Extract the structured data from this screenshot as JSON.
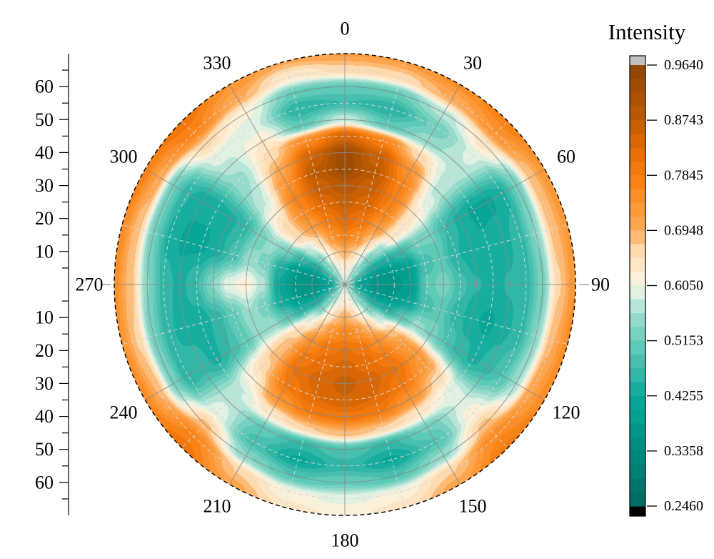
{
  "chart_data": {
    "type": "heatmap",
    "projection": "polar",
    "colorbar": {
      "title": "Intensity",
      "tick_labels": [
        "0.9640",
        "0.8743",
        "0.7845",
        "0.6948",
        "0.6050",
        "0.5153",
        "0.4255",
        "0.3358",
        "0.2460"
      ],
      "min": 0.246,
      "max": 0.964,
      "bands": 32,
      "over_color": "#c1c1c1",
      "under_color": "#000000"
    },
    "angular_tick_labels": [
      "0",
      "30",
      "60",
      "90",
      "120",
      "150",
      "180",
      "210",
      "240",
      "270",
      "300",
      "330"
    ],
    "angular_tick_degrees": [
      0,
      30,
      60,
      90,
      120,
      150,
      180,
      210,
      240,
      270,
      300,
      330
    ],
    "radial_axis": {
      "tick_labels": [
        "10",
        "20",
        "30",
        "40",
        "50",
        "60"
      ],
      "major_step": 10,
      "minor_step": 5,
      "r_max": 70,
      "mirrored": true
    },
    "grid_style": {
      "major_line_color": "#8a8a8a",
      "minor_line_color": "#d7d7d7",
      "boundary_color": "#000000",
      "axis_color": "#000000"
    },
    "colormap_stops": [
      [
        0.246,
        "#00685e"
      ],
      [
        0.3,
        "#007e72"
      ],
      [
        0.336,
        "#008a7e"
      ],
      [
        0.38,
        "#009b8d"
      ],
      [
        0.4255,
        "#0aa99b"
      ],
      [
        0.47,
        "#3fbcab"
      ],
      [
        0.5153,
        "#67cdbb"
      ],
      [
        0.555,
        "#9cdccd"
      ],
      [
        0.585,
        "#cdeee2"
      ],
      [
        0.605,
        "#f9f5e2"
      ],
      [
        0.625,
        "#fdecd3"
      ],
      [
        0.66,
        "#feddb2"
      ],
      [
        0.6948,
        "#fdab59"
      ],
      [
        0.73,
        "#fc9838"
      ],
      [
        0.7845,
        "#f87d0e"
      ],
      [
        0.83,
        "#e06a05"
      ],
      [
        0.8743,
        "#c25c03"
      ],
      [
        0.92,
        "#a54f02"
      ],
      [
        0.964,
        "#8c4501"
      ]
    ],
    "grid": {
      "r_values": [
        0,
        5,
        10,
        15,
        20,
        25,
        30,
        35,
        40,
        45,
        50,
        55,
        60,
        65,
        70
      ],
      "theta_values_deg": [
        0,
        15,
        30,
        45,
        60,
        75,
        90,
        105,
        120,
        135,
        150,
        165,
        180,
        195,
        210,
        225,
        240,
        255,
        270,
        285,
        300,
        315,
        330,
        345
      ],
      "values": [
        [
          0.58,
          0.58,
          0.58,
          0.58,
          0.58,
          0.58,
          0.58,
          0.58,
          0.58,
          0.58,
          0.58,
          0.58,
          0.58,
          0.58,
          0.58,
          0.58,
          0.58,
          0.58,
          0.58,
          0.58,
          0.58,
          0.58,
          0.58,
          0.58
        ],
        [
          0.63,
          0.61,
          0.57,
          0.52,
          0.47,
          0.42,
          0.4,
          0.42,
          0.47,
          0.52,
          0.57,
          0.61,
          0.63,
          0.61,
          0.57,
          0.52,
          0.47,
          0.42,
          0.4,
          0.42,
          0.47,
          0.52,
          0.57,
          0.61
        ],
        [
          0.7,
          0.67,
          0.6,
          0.51,
          0.43,
          0.37,
          0.36,
          0.37,
          0.43,
          0.52,
          0.61,
          0.67,
          0.7,
          0.67,
          0.61,
          0.52,
          0.43,
          0.37,
          0.36,
          0.37,
          0.43,
          0.52,
          0.6,
          0.67
        ],
        [
          0.78,
          0.75,
          0.67,
          0.55,
          0.44,
          0.38,
          0.37,
          0.38,
          0.44,
          0.58,
          0.68,
          0.74,
          0.77,
          0.74,
          0.68,
          0.6,
          0.44,
          0.38,
          0.37,
          0.38,
          0.46,
          0.58,
          0.66,
          0.74
        ],
        [
          0.83,
          0.8,
          0.73,
          0.64,
          0.47,
          0.4,
          0.39,
          0.41,
          0.5,
          0.68,
          0.75,
          0.8,
          0.81,
          0.8,
          0.75,
          0.66,
          0.5,
          0.43,
          0.42,
          0.44,
          0.52,
          0.66,
          0.72,
          0.79
        ],
        [
          0.86,
          0.84,
          0.77,
          0.64,
          0.52,
          0.48,
          0.5,
          0.48,
          0.55,
          0.72,
          0.79,
          0.82,
          0.84,
          0.82,
          0.79,
          0.68,
          0.55,
          0.52,
          0.57,
          0.53,
          0.55,
          0.66,
          0.76,
          0.83
        ],
        [
          0.89,
          0.86,
          0.78,
          0.63,
          0.52,
          0.5,
          0.53,
          0.5,
          0.53,
          0.74,
          0.81,
          0.84,
          0.86,
          0.84,
          0.81,
          0.68,
          0.55,
          0.56,
          0.62,
          0.55,
          0.52,
          0.62,
          0.77,
          0.86
        ],
        [
          0.93,
          0.88,
          0.77,
          0.6,
          0.47,
          0.45,
          0.48,
          0.46,
          0.49,
          0.72,
          0.79,
          0.83,
          0.85,
          0.83,
          0.79,
          0.66,
          0.5,
          0.51,
          0.6,
          0.48,
          0.46,
          0.58,
          0.74,
          0.88
        ],
        [
          0.93,
          0.86,
          0.74,
          0.57,
          0.44,
          0.43,
          0.45,
          0.43,
          0.46,
          0.66,
          0.74,
          0.79,
          0.8,
          0.79,
          0.74,
          0.62,
          0.47,
          0.46,
          0.54,
          0.44,
          0.44,
          0.56,
          0.7,
          0.85
        ],
        [
          0.84,
          0.78,
          0.66,
          0.57,
          0.42,
          0.43,
          0.44,
          0.42,
          0.44,
          0.6,
          0.64,
          0.67,
          0.69,
          0.67,
          0.64,
          0.58,
          0.44,
          0.43,
          0.47,
          0.42,
          0.43,
          0.55,
          0.66,
          0.76
        ],
        [
          0.58,
          0.5,
          0.55,
          0.58,
          0.42,
          0.44,
          0.45,
          0.44,
          0.46,
          0.59,
          0.52,
          0.46,
          0.49,
          0.46,
          0.51,
          0.58,
          0.46,
          0.44,
          0.44,
          0.42,
          0.43,
          0.57,
          0.63,
          0.5
        ],
        [
          0.47,
          0.45,
          0.52,
          0.59,
          0.44,
          0.46,
          0.46,
          0.46,
          0.49,
          0.62,
          0.49,
          0.42,
          0.46,
          0.42,
          0.48,
          0.6,
          0.45,
          0.45,
          0.46,
          0.44,
          0.45,
          0.6,
          0.59,
          0.45
        ],
        [
          0.51,
          0.51,
          0.57,
          0.64,
          0.52,
          0.54,
          0.53,
          0.54,
          0.56,
          0.68,
          0.55,
          0.49,
          0.51,
          0.49,
          0.54,
          0.68,
          0.53,
          0.52,
          0.54,
          0.52,
          0.52,
          0.66,
          0.61,
          0.51
        ],
        [
          0.66,
          0.66,
          0.7,
          0.74,
          0.68,
          0.68,
          0.67,
          0.69,
          0.71,
          0.76,
          0.67,
          0.61,
          0.6,
          0.61,
          0.67,
          0.77,
          0.69,
          0.67,
          0.68,
          0.68,
          0.71,
          0.77,
          0.7,
          0.63
        ],
        [
          0.72,
          0.72,
          0.75,
          0.78,
          0.74,
          0.73,
          0.74,
          0.75,
          0.76,
          0.79,
          0.71,
          0.64,
          0.62,
          0.64,
          0.71,
          0.8,
          0.76,
          0.74,
          0.75,
          0.76,
          0.78,
          0.8,
          0.74,
          0.7
        ]
      ]
    }
  }
}
